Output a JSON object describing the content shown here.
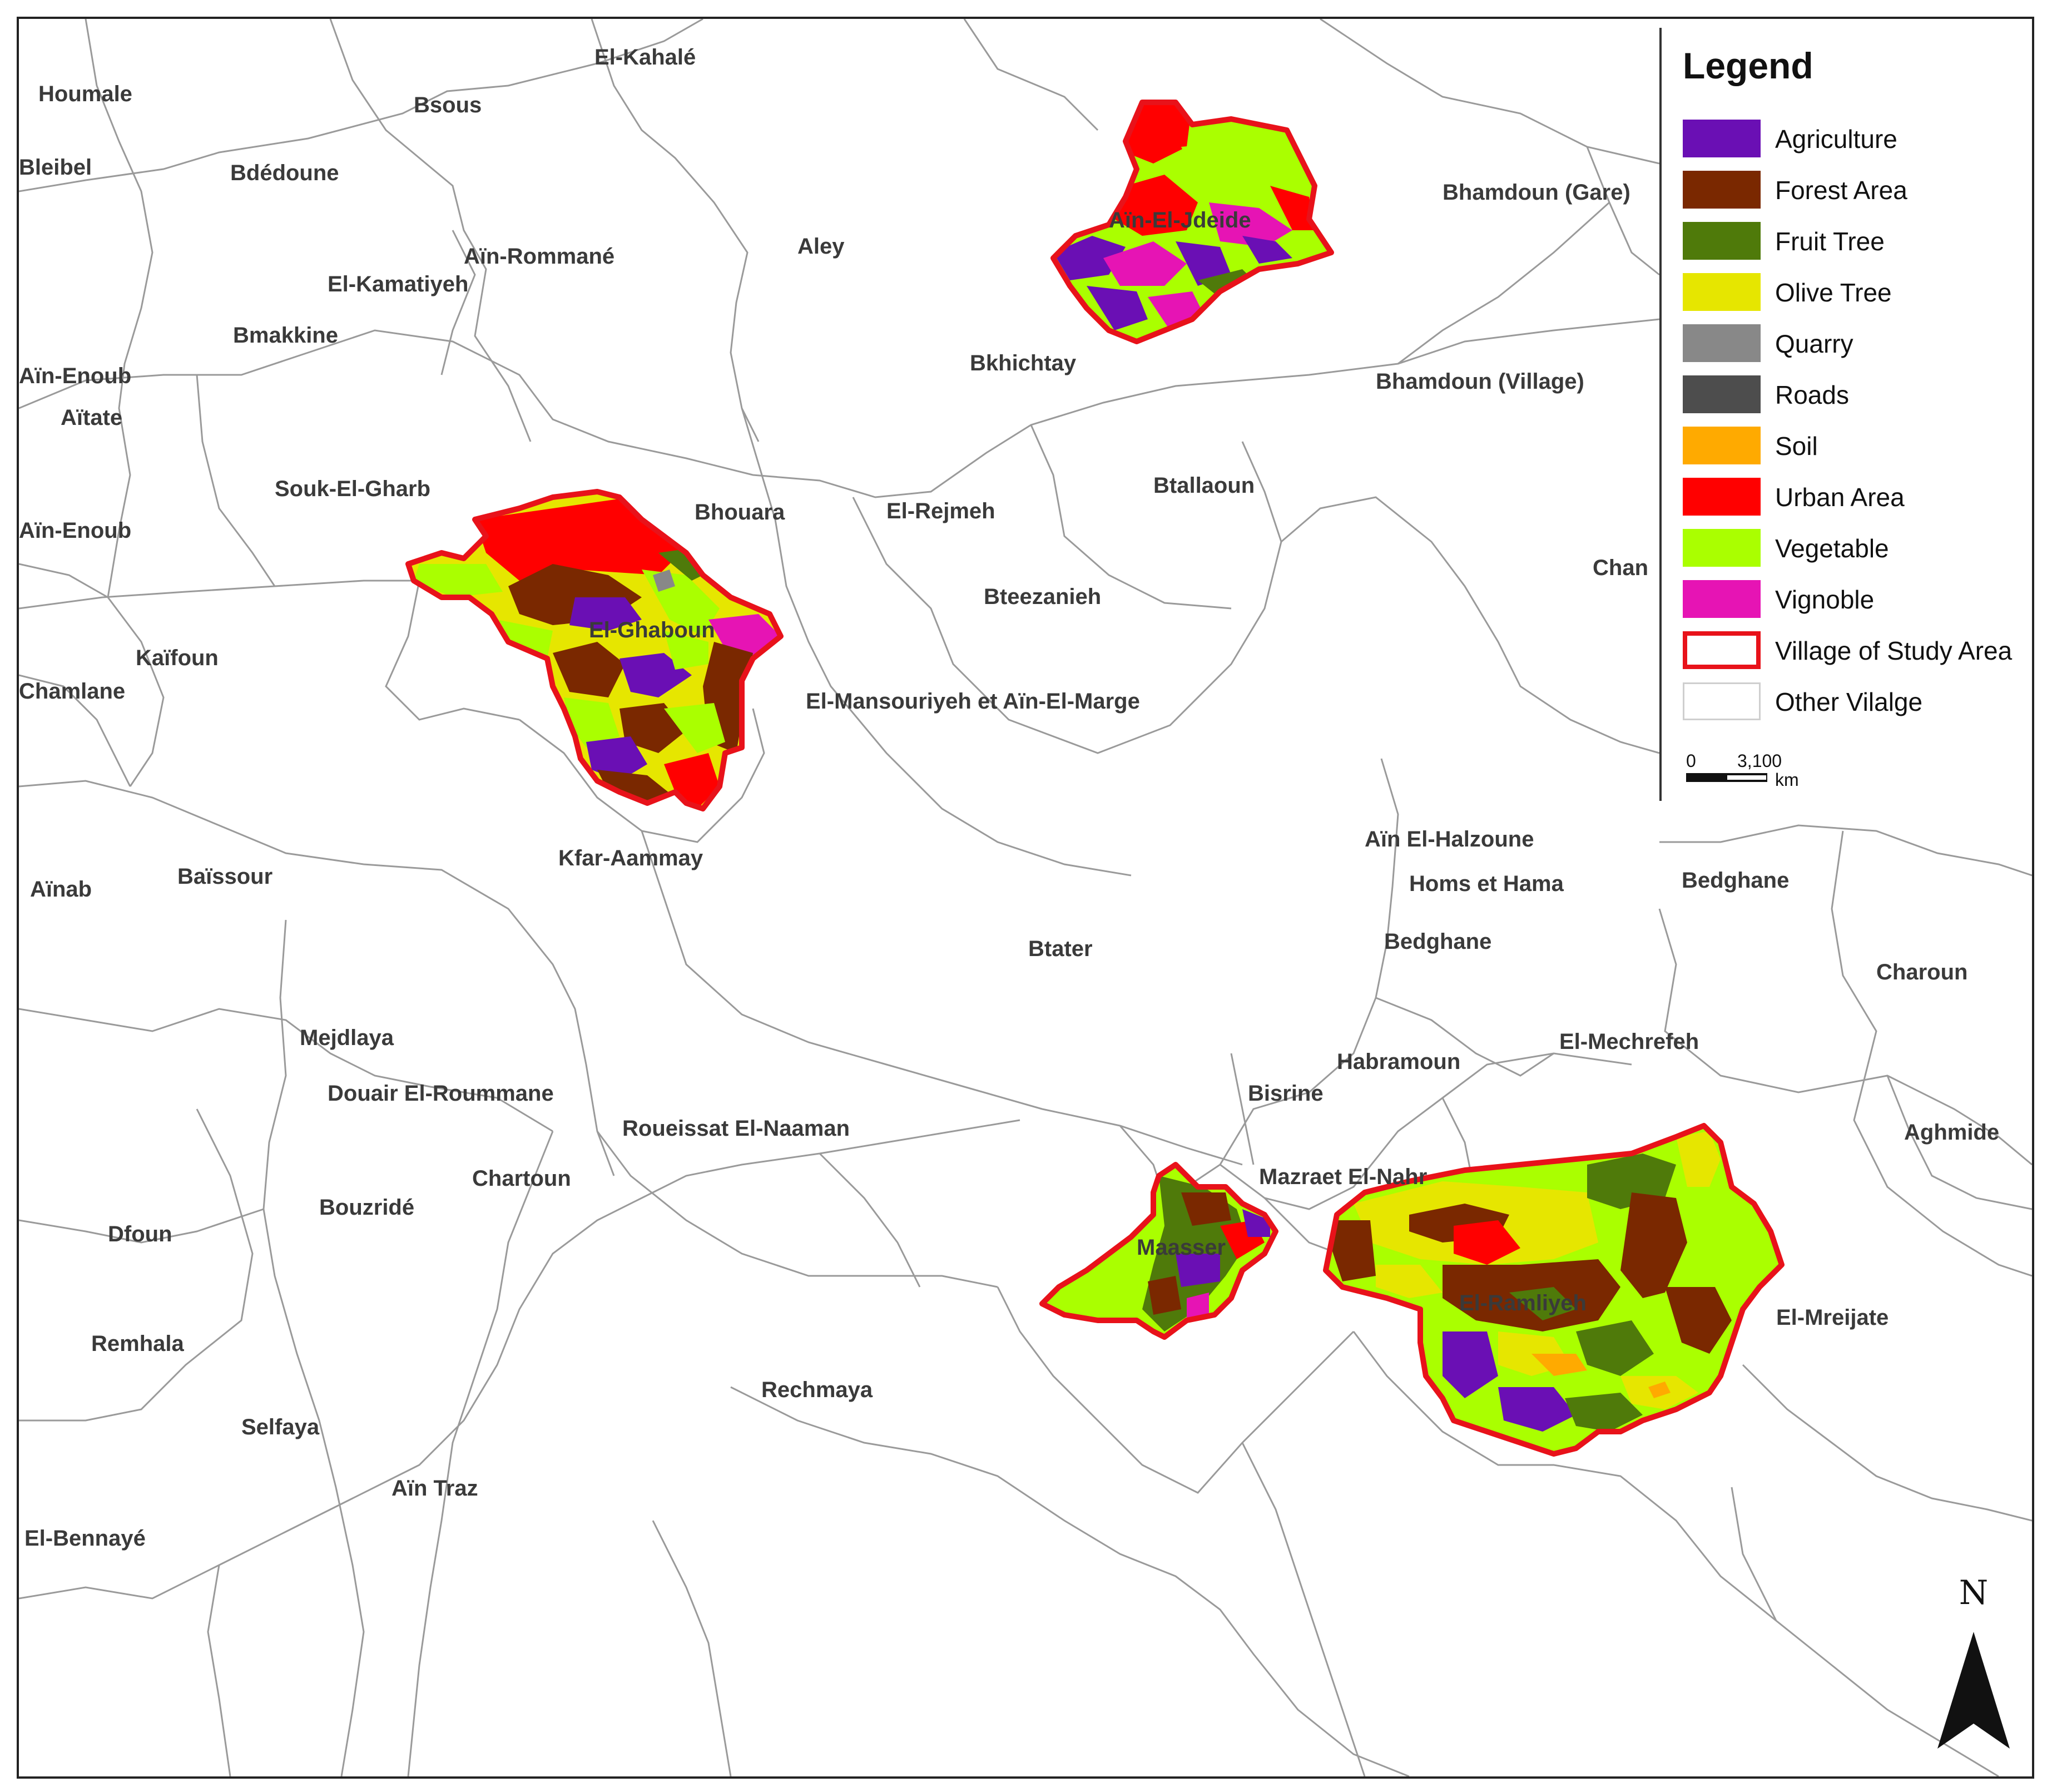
{
  "map": {
    "village_labels": [
      {
        "id": "houmale",
        "text": "Houmale"
      },
      {
        "id": "el-kahale",
        "text": "El-Kahalé"
      },
      {
        "id": "bsous",
        "text": "Bsous"
      },
      {
        "id": "bleibel",
        "text": "Bleibel"
      },
      {
        "id": "bdedoune",
        "text": "Bdédoune"
      },
      {
        "id": "ain-romane",
        "text": "Aïn-Rommané"
      },
      {
        "id": "aley",
        "text": "Aley"
      },
      {
        "id": "el-kamatiyeh",
        "text": "El-Kamatiyeh"
      },
      {
        "id": "bmakkine",
        "text": "Bmakkine"
      },
      {
        "id": "ain-enoub-1",
        "text": "Aïn-Enoub"
      },
      {
        "id": "aitate",
        "text": "Aïtate"
      },
      {
        "id": "ain-el-jdeide",
        "text": "Aïn-El-Jdeide"
      },
      {
        "id": "bhamdoun-gare",
        "text": "Bhamdoun (Gare)"
      },
      {
        "id": "bkhichtay",
        "text": "Bkhichtay"
      },
      {
        "id": "bhamdoun-village",
        "text": "Bhamdoun (Village)"
      },
      {
        "id": "souk-el-gharb",
        "text": "Souk-El-Gharb"
      },
      {
        "id": "bhouara",
        "text": "Bhouara"
      },
      {
        "id": "el-rejmeh",
        "text": "El-Rejmeh"
      },
      {
        "id": "btallaoun",
        "text": "Btallaoun"
      },
      {
        "id": "ain-enoub-2",
        "text": "Aïn-Enoub"
      },
      {
        "id": "chan",
        "text": "Chan"
      },
      {
        "id": "bteezanieh",
        "text": "Bteezanieh"
      },
      {
        "id": "el-ghaboun",
        "text": "El-Ghaboun"
      },
      {
        "id": "kaifoun",
        "text": "Kaïfoun"
      },
      {
        "id": "chamlane",
        "text": "Chamlane"
      },
      {
        "id": "el-mansouriyeh",
        "text": "El-Mansouriyeh et Aïn-El-Marge"
      },
      {
        "id": "ain-el-halzoune",
        "text": "Aïn El-Halzoune"
      },
      {
        "id": "kfar-aammay",
        "text": "Kfar-Aammay"
      },
      {
        "id": "homs-et-hama",
        "text": "Homs et Hama"
      },
      {
        "id": "bedghane-1",
        "text": "Bedghane"
      },
      {
        "id": "ainab",
        "text": "Aïnab"
      },
      {
        "id": "baissour",
        "text": "Baïssour"
      },
      {
        "id": "bedghane-2",
        "text": "Bedghane"
      },
      {
        "id": "btater",
        "text": "Btater"
      },
      {
        "id": "charoun",
        "text": "Charoun"
      },
      {
        "id": "mejdlaya",
        "text": "Mejdlaya"
      },
      {
        "id": "el-mechrefeh",
        "text": "El-Mechrefeh"
      },
      {
        "id": "habramoun",
        "text": "Habramoun"
      },
      {
        "id": "douair",
        "text": "Douair El-Roummane"
      },
      {
        "id": "bisrine",
        "text": "Bisrine"
      },
      {
        "id": "roueissat",
        "text": "Roueissat El-Naaman"
      },
      {
        "id": "aghmide",
        "text": "Aghmide"
      },
      {
        "id": "chartoun",
        "text": "Chartoun"
      },
      {
        "id": "mazraet",
        "text": "Mazraet El-Nahr"
      },
      {
        "id": "bouzride",
        "text": "Bouzridé"
      },
      {
        "id": "dfoun",
        "text": "Dfoun"
      },
      {
        "id": "maasser",
        "text": "Maasser"
      },
      {
        "id": "el-ramliyeh",
        "text": "El-Ramliyeh"
      },
      {
        "id": "el-mreijate",
        "text": "El-Mreijate"
      },
      {
        "id": "remhala",
        "text": "Remhala"
      },
      {
        "id": "rechmaya",
        "text": "Rechmaya"
      },
      {
        "id": "selfaya",
        "text": "Selfaya"
      },
      {
        "id": "ain-traz",
        "text": "Aïn Traz"
      },
      {
        "id": "el-bennaye",
        "text": "El-Bennayé"
      }
    ]
  },
  "legend": {
    "title": "Legend",
    "items": [
      {
        "label": "Agriculture",
        "color": "#6a0fb4"
      },
      {
        "label": "Forest Area",
        "color": "#7a2800"
      },
      {
        "label": "Fruit Tree",
        "color": "#4f7a0a"
      },
      {
        "label": "Olive Tree",
        "color": "#e6e600"
      },
      {
        "label": "Quarry",
        "color": "#888888"
      },
      {
        "label": "Roads",
        "color": "#4d4d4d"
      },
      {
        "label": "Soil",
        "color": "#ffaa00"
      },
      {
        "label": "Urban Area",
        "color": "#ff0000"
      },
      {
        "label": "Vegetable",
        "color": "#aaff00"
      },
      {
        "label": "Vignoble",
        "color": "#e614b4"
      },
      {
        "label": "Village of Study Area",
        "color": "#e8121a"
      },
      {
        "label": "Other Vilalge",
        "color": "#ffffff"
      }
    ]
  },
  "scalebar": {
    "zero": "0",
    "value": "3,100",
    "unit": "km"
  },
  "north": {
    "label": "N"
  }
}
